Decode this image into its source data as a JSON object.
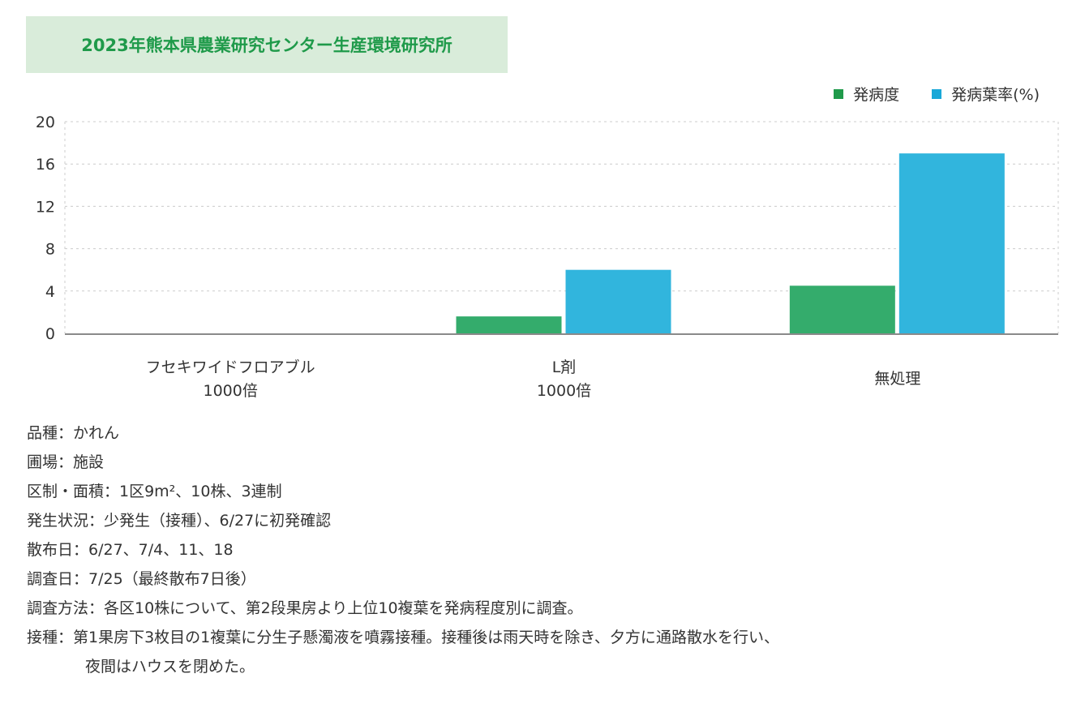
{
  "title": "2023年熊本県農業研究センター生産環境研究所",
  "chart_data": {
    "type": "bar",
    "categories": [
      "フセキワイドフロアブル\n1000倍",
      "L剤\n1000倍",
      "無処理"
    ],
    "series": [
      {
        "name": "発病度",
        "color": "#34ac6c",
        "values": [
          0,
          1.6,
          4.5
        ]
      },
      {
        "name": "発病葉率(%)",
        "color": "#31b5dd",
        "values": [
          0,
          6.0,
          17.0
        ]
      }
    ],
    "ylim": [
      0,
      20
    ],
    "yticks": [
      0,
      4,
      8,
      12,
      16,
      20
    ],
    "grid": true,
    "legend": "top-right"
  },
  "notes": [
    "品種：かれん",
    "圃場：施設",
    "区制・面積：1区9m²、10株、3連制",
    "発生状況：少発生（接種）、6/27に初発確認",
    "散布日：6/27、7/4、11、18",
    "調査日：7/25（最終散布7日後）",
    "調査方法：各区10株について、第2段果房より上位10複葉を発病程度別に調査。",
    "接種：第1果房下3枚目の1複葉に分生子懸濁液を噴霧接種。接種後は雨天時を除き、夕方に通路散水を行い、",
    "夜間はハウスを閉めた。"
  ]
}
